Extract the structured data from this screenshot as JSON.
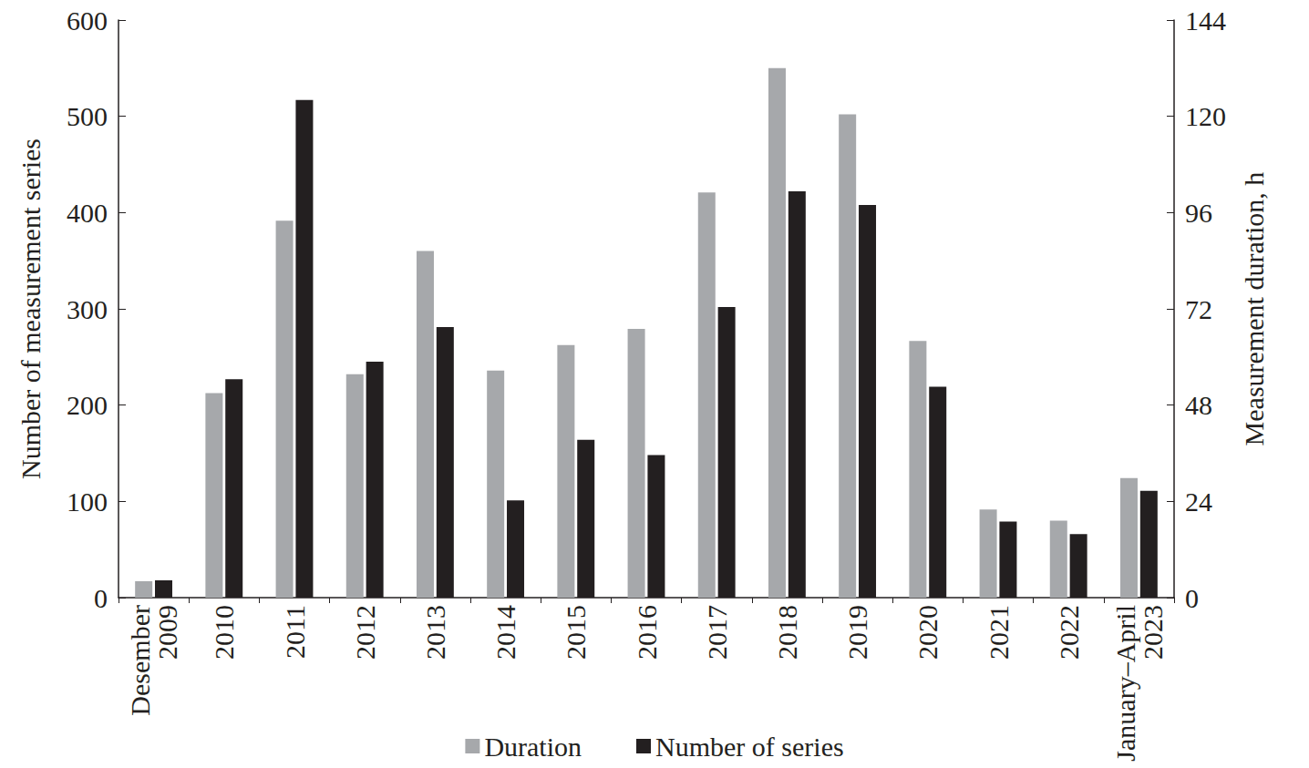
{
  "chart_data": {
    "type": "bar",
    "categories": [
      "Desember 2009",
      "2010",
      "2011",
      "2012",
      "2013",
      "2014",
      "2015",
      "2016",
      "2017",
      "2018",
      "2019",
      "2020",
      "2021",
      "2022",
      "January–April 2023"
    ],
    "series": [
      {
        "name": "Duration",
        "color": "#a6a8ab",
        "axis": "y2",
        "values": [
          4.1,
          51,
          94,
          55.7,
          86.4,
          56.6,
          63,
          67,
          101,
          132,
          120.5,
          64,
          22,
          19.2,
          29.8
        ]
      },
      {
        "name": "Number of series",
        "color": "#231f20",
        "values": [
          18,
          227,
          517,
          245,
          281,
          101,
          164,
          148,
          302,
          422,
          408,
          219,
          79,
          66,
          111
        ]
      }
    ],
    "y_label": "Number of measurement series",
    "y2_label": "Measurement duration, h",
    "ylim": [
      0,
      600
    ],
    "yticks": [
      0,
      100,
      200,
      300,
      400,
      500,
      600
    ],
    "y2lim": [
      0,
      144
    ],
    "y2ticks": [
      0,
      24,
      48,
      72,
      96,
      120,
      144
    ],
    "legend": "bottom",
    "grid": false,
    "data_labels": false
  }
}
